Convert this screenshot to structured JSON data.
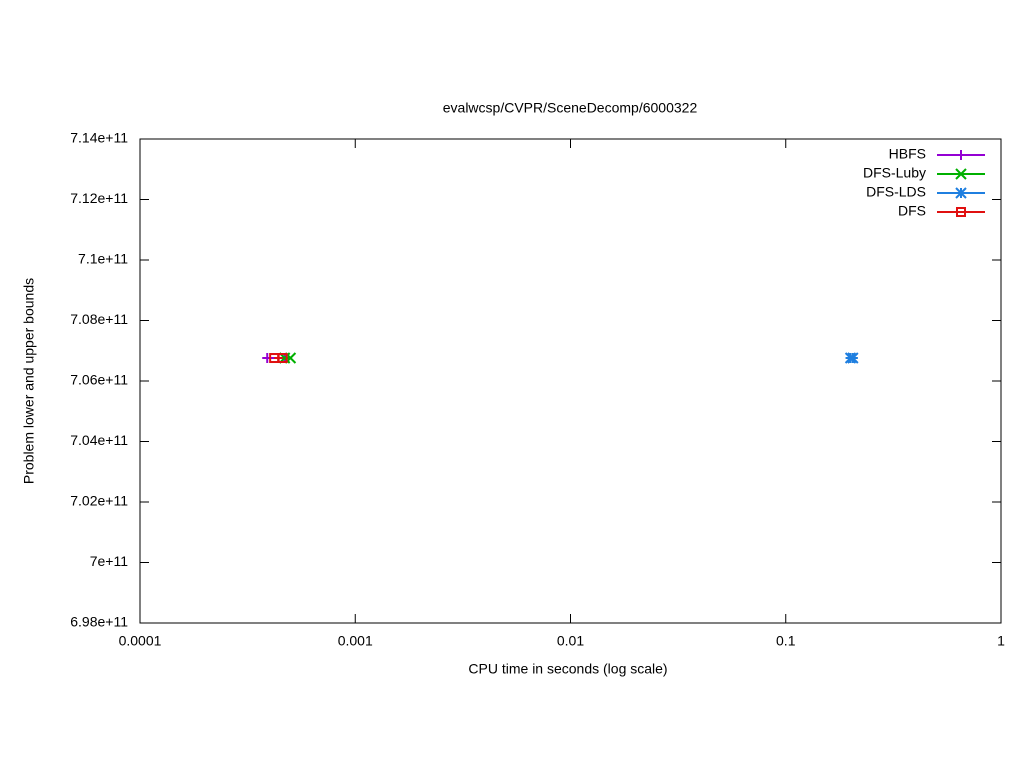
{
  "chart_data": {
    "type": "scatter",
    "title": "evalwcsp/CVPR/SceneDecomp/6000322",
    "x_label": "CPU time in seconds (log scale)",
    "y_label": "Problem lower and upper bounds",
    "xscale": "log",
    "xlim": [
      0.0001,
      1
    ],
    "xticks": [
      0.0001,
      0.001,
      0.01,
      0.1,
      1
    ],
    "ylim": [
      698000000000,
      714000000000
    ],
    "yticks": [
      {
        "value": 698000000000,
        "label": "6.98e+11"
      },
      {
        "value": 700000000000,
        "label": "7e+11"
      },
      {
        "value": 702000000000,
        "label": "7.02e+11"
      },
      {
        "value": 704000000000,
        "label": "7.04e+11"
      },
      {
        "value": 706000000000,
        "label": "7.06e+11"
      },
      {
        "value": 708000000000,
        "label": "7.08e+11"
      },
      {
        "value": 710000000000,
        "label": "7.1e+11"
      },
      {
        "value": 712000000000,
        "label": "7.12e+11"
      },
      {
        "value": 714000000000,
        "label": "7.14e+11"
      }
    ],
    "legend": "upper right",
    "series": [
      {
        "name": "HBFS",
        "color": "#9400d3",
        "marker": "plus",
        "x": [
          0.00039,
          0.00047
        ],
        "values": [
          706760000000,
          706760000000
        ]
      },
      {
        "name": "DFS-Luby",
        "color": "#00b000",
        "marker": "cross",
        "x": [
          0.00047,
          0.0005
        ],
        "values": [
          706760000000,
          706760000000
        ]
      },
      {
        "name": "DFS-LDS",
        "color": "#1f7fe0",
        "marker": "star",
        "x": [
          0.2,
          0.205
        ],
        "values": [
          706760000000,
          706760000000
        ]
      },
      {
        "name": "DFS",
        "color": "#e01010",
        "marker": "square",
        "x": [
          0.00042,
          0.00046
        ],
        "values": [
          706760000000,
          706760000000
        ]
      }
    ]
  }
}
